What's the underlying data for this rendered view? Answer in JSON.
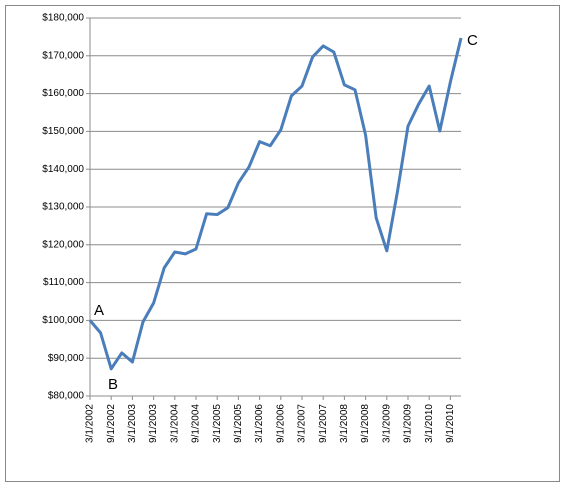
{
  "chart_data": {
    "type": "line",
    "categories": [
      "3/1/2002",
      null,
      "9/1/2002",
      null,
      "3/1/2003",
      null,
      "9/1/2003",
      null,
      "3/1/2004",
      null,
      "9/1/2004",
      null,
      "3/1/2005",
      null,
      "9/1/2005",
      null,
      "3/1/2006",
      null,
      "9/1/2006",
      null,
      "3/1/2007",
      null,
      "9/1/2007",
      null,
      "3/1/2008",
      null,
      "9/1/2008",
      null,
      "3/1/2009",
      null,
      "9/1/2009",
      null,
      "3/1/2010",
      null,
      "9/1/2010",
      null
    ],
    "values": [
      100000,
      96700,
      87200,
      91400,
      89000,
      99600,
      104600,
      113900,
      118100,
      117600,
      118900,
      128200,
      128000,
      129800,
      136400,
      140600,
      147300,
      146200,
      150400,
      159400,
      162000,
      169700,
      172600,
      171000,
      162300,
      161000,
      149000,
      127100,
      118400,
      134000,
      151400,
      157200,
      162000,
      150100,
      163100,
      174700
    ],
    "color": "#4a7ebb",
    "ylim": [
      80000,
      180000
    ],
    "yticks": [
      {
        "value": 80000,
        "label": "$80,000"
      },
      {
        "value": 90000,
        "label": "$90,000"
      },
      {
        "value": 100000,
        "label": "$100,000"
      },
      {
        "value": 110000,
        "label": "$110,000"
      },
      {
        "value": 120000,
        "label": "$120,000"
      },
      {
        "value": 130000,
        "label": "$130,000"
      },
      {
        "value": 140000,
        "label": "$140,000"
      },
      {
        "value": 150000,
        "label": "$150,000"
      },
      {
        "value": 160000,
        "label": "$160,000"
      },
      {
        "value": 170000,
        "label": "$170,000"
      },
      {
        "value": 180000,
        "label": "$180,000"
      }
    ],
    "grid": true,
    "annotations": [
      "A",
      "B",
      "C"
    ]
  }
}
